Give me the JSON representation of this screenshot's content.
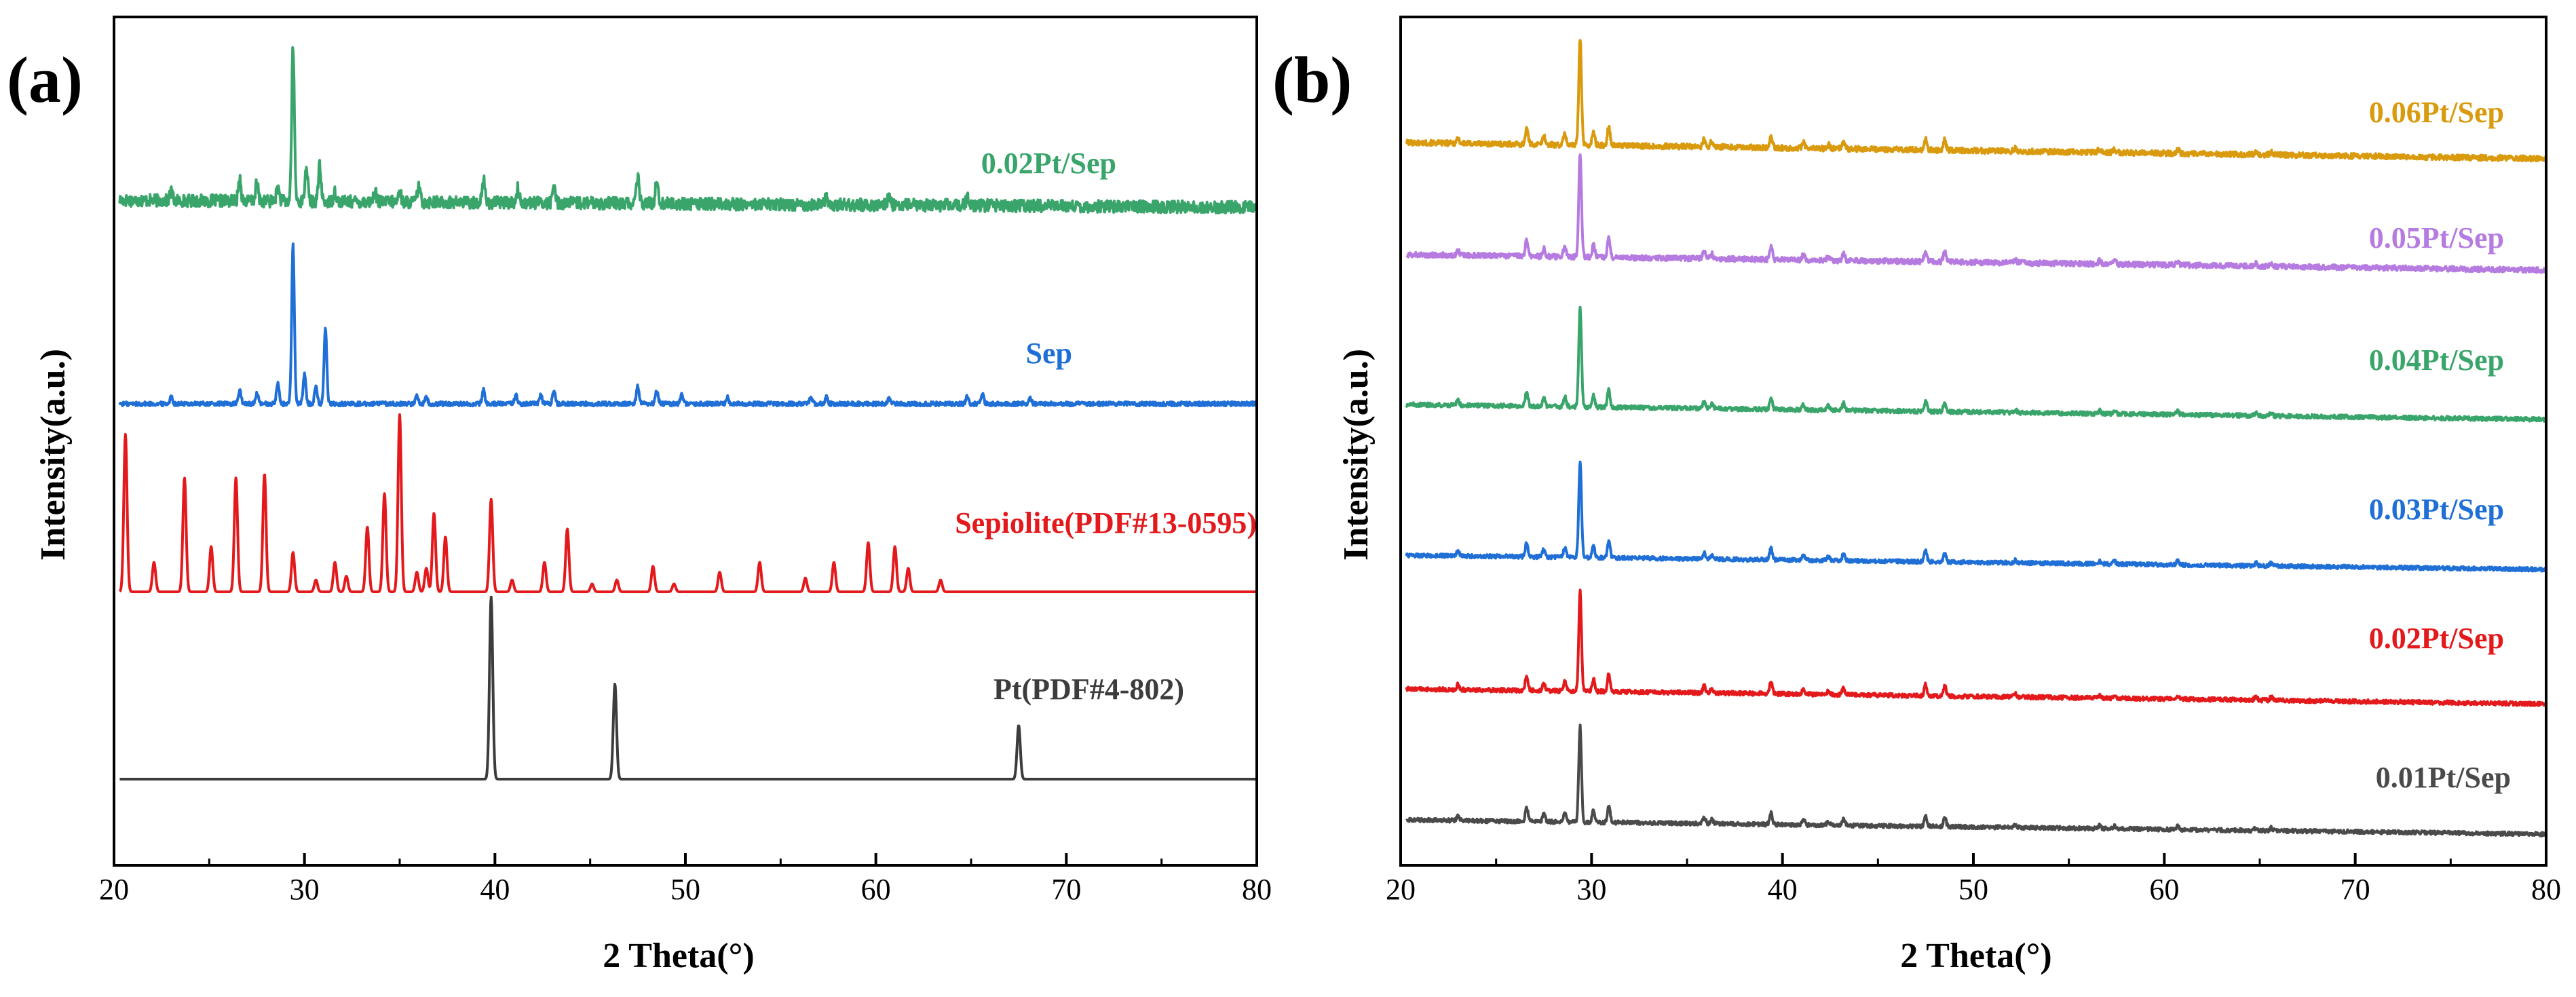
{
  "chart_data": [
    {
      "type": "line",
      "panel_label": "(a)",
      "xlabel": "2 Theta(°)",
      "ylabel": "Intensity(a.u.)",
      "xlim": [
        20,
        80
      ],
      "xticks": [
        20,
        30,
        40,
        50,
        60,
        70,
        80
      ],
      "yticks": "none",
      "series": [
        {
          "name": "0.02Pt/Sep",
          "color": "#3aa56b",
          "baseline": 3.0,
          "noise": 0.035,
          "peaks": [
            [
              23.0,
              0.05
            ],
            [
              26.6,
              0.13
            ],
            [
              27.5,
              0.1
            ],
            [
              28.6,
              0.08
            ],
            [
              29.4,
              0.88
            ],
            [
              30.1,
              0.2
            ],
            [
              30.8,
              0.2
            ],
            [
              31.6,
              0.06
            ],
            [
              33.7,
              0.06
            ],
            [
              35.0,
              0.06
            ],
            [
              36.0,
              0.09
            ],
            [
              39.4,
              0.13
            ],
            [
              41.2,
              0.08
            ],
            [
              43.1,
              0.1
            ],
            [
              47.5,
              0.15
            ],
            [
              48.5,
              0.14
            ],
            [
              57.4,
              0.05
            ],
            [
              60.7,
              0.05
            ],
            [
              64.8,
              0.04
            ]
          ]
        },
        {
          "name": "Sep",
          "color": "#1f6fd6",
          "baseline": 2.0,
          "noise": 0.012,
          "peaks": [
            [
              23.0,
              0.04
            ],
            [
              26.6,
              0.08
            ],
            [
              27.5,
              0.06
            ],
            [
              28.6,
              0.12
            ],
            [
              29.4,
              0.9
            ],
            [
              30.0,
              0.17
            ],
            [
              30.6,
              0.1
            ],
            [
              31.1,
              0.43
            ],
            [
              35.9,
              0.05
            ],
            [
              36.4,
              0.04
            ],
            [
              39.4,
              0.08
            ],
            [
              41.1,
              0.05
            ],
            [
              42.4,
              0.05
            ],
            [
              43.1,
              0.07
            ],
            [
              47.5,
              0.1
            ],
            [
              48.5,
              0.08
            ],
            [
              49.8,
              0.05
            ],
            [
              52.2,
              0.04
            ],
            [
              56.6,
              0.04
            ],
            [
              57.4,
              0.04
            ],
            [
              60.7,
              0.03
            ],
            [
              64.8,
              0.04
            ],
            [
              65.6,
              0.05
            ],
            [
              68.1,
              0.03
            ]
          ]
        },
        {
          "name": "Sepiolite(PDF#13-0595)",
          "color": "#e3191c",
          "baseline": 1.0,
          "noise": 0.0,
          "peaks": [
            [
              20.6,
              0.8
            ],
            [
              22.1,
              0.15
            ],
            [
              23.7,
              0.58
            ],
            [
              25.1,
              0.23
            ],
            [
              26.4,
              0.58
            ],
            [
              27.9,
              0.6
            ],
            [
              29.4,
              0.2
            ],
            [
              30.6,
              0.06
            ],
            [
              31.6,
              0.15
            ],
            [
              32.2,
              0.08
            ],
            [
              33.3,
              0.33
            ],
            [
              34.2,
              0.5
            ],
            [
              35.0,
              0.9
            ],
            [
              35.9,
              0.1
            ],
            [
              36.4,
              0.12
            ],
            [
              36.8,
              0.4
            ],
            [
              37.4,
              0.28
            ],
            [
              39.8,
              0.47
            ],
            [
              40.9,
              0.06
            ],
            [
              42.6,
              0.15
            ],
            [
              43.8,
              0.32
            ],
            [
              45.1,
              0.04
            ],
            [
              46.4,
              0.06
            ],
            [
              48.3,
              0.13
            ],
            [
              49.4,
              0.04
            ],
            [
              51.8,
              0.1
            ],
            [
              53.9,
              0.15
            ],
            [
              56.3,
              0.07
            ],
            [
              57.8,
              0.15
            ],
            [
              59.6,
              0.25
            ],
            [
              61.0,
              0.23
            ],
            [
              61.7,
              0.12
            ],
            [
              63.4,
              0.06
            ]
          ]
        },
        {
          "name": "Pt(PDF#4-802)",
          "color": "#3c3c3c",
          "baseline": 0.0,
          "noise": 0.0,
          "peaks": [
            [
              39.8,
              0.88
            ],
            [
              46.3,
              0.46
            ],
            [
              67.5,
              0.26
            ]
          ]
        }
      ]
    },
    {
      "type": "line",
      "panel_label": "(b)",
      "xlabel": "2 Theta(°)",
      "ylabel": "Intensity(a.u.)",
      "xlim": [
        20,
        80
      ],
      "xticks": [
        20,
        30,
        40,
        50,
        60,
        70,
        80
      ],
      "yticks": "none",
      "series": [
        {
          "name": "0.06Pt/Sep",
          "color": "#d99a0e",
          "baseline": 5.0,
          "tilt": -0.15,
          "noise": 0.025,
          "scale": 0.88
        },
        {
          "name": "0.05Pt/Sep",
          "color": "#b57be0",
          "baseline": 4.0,
          "tilt": -0.15,
          "noise": 0.025,
          "scale": 0.85
        },
        {
          "name": "0.04Pt/Sep",
          "color": "#3aa56b",
          "baseline": 3.0,
          "tilt": -0.15,
          "noise": 0.02,
          "scale": 0.82
        },
        {
          "name": "0.03Pt/Sep",
          "color": "#1f6fd6",
          "baseline": 2.0,
          "tilt": -0.15,
          "noise": 0.02,
          "scale": 0.78
        },
        {
          "name": "0.02Pt/Sep",
          "color": "#e3191c",
          "baseline": 1.0,
          "tilt": -0.15,
          "noise": 0.02,
          "scale": 0.82
        },
        {
          "name": "0.01Pt/Sep",
          "color": "#4a4a4a",
          "baseline": 0.0,
          "tilt": -0.15,
          "noise": 0.02,
          "scale": 0.78
        }
      ],
      "common_peaks": [
        [
          23.0,
          0.05
        ],
        [
          26.6,
          0.15
        ],
        [
          27.5,
          0.08
        ],
        [
          28.6,
          0.1
        ],
        [
          29.4,
          1.0
        ],
        [
          30.1,
          0.12
        ],
        [
          30.9,
          0.18
        ],
        [
          35.9,
          0.07
        ],
        [
          36.3,
          0.05
        ],
        [
          39.4,
          0.12
        ],
        [
          41.1,
          0.05
        ],
        [
          42.4,
          0.04
        ],
        [
          43.2,
          0.07
        ],
        [
          47.5,
          0.11
        ],
        [
          48.5,
          0.1
        ],
        [
          52.2,
          0.03
        ],
        [
          56.6,
          0.03
        ],
        [
          57.4,
          0.03
        ],
        [
          60.7,
          0.04
        ],
        [
          64.8,
          0.03
        ],
        [
          65.6,
          0.03
        ]
      ]
    }
  ]
}
